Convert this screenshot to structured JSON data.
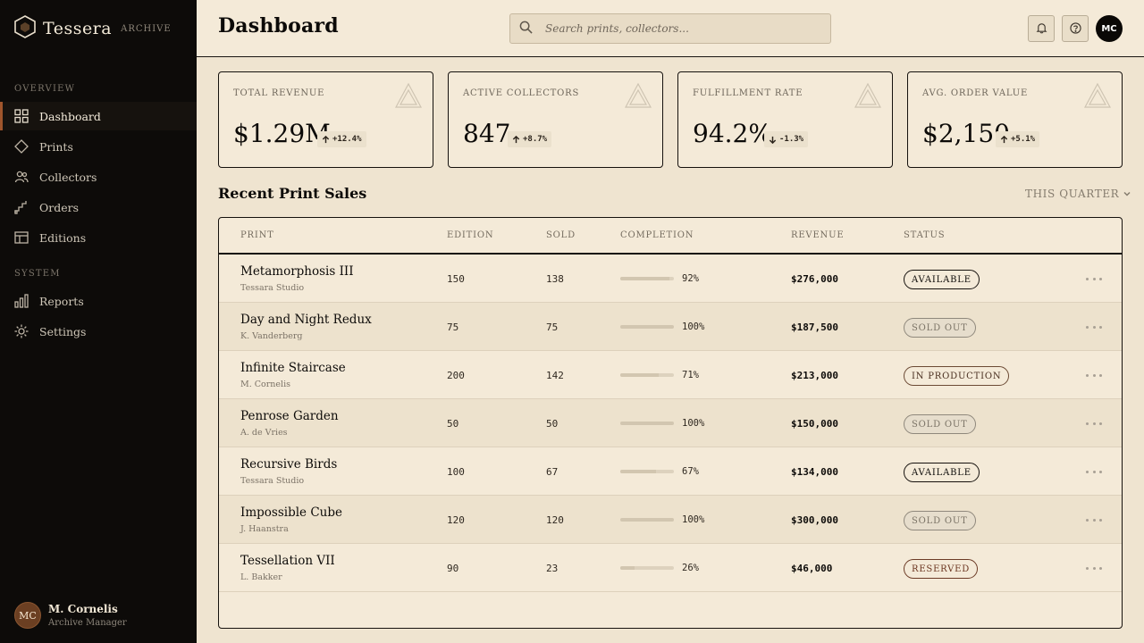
{
  "brand": {
    "name": "Tessera",
    "tag": "ARCHIVE"
  },
  "sidebar": {
    "sections": [
      {
        "label": "OVERVIEW"
      },
      {
        "label": "SYSTEM"
      }
    ],
    "items": [
      {
        "label": "Dashboard",
        "icon": "grid-icon",
        "active": true
      },
      {
        "label": "Prints",
        "icon": "diamond-icon"
      },
      {
        "label": "Collectors",
        "icon": "users-icon"
      },
      {
        "label": "Orders",
        "icon": "steps-icon"
      },
      {
        "label": "Editions",
        "icon": "layout-icon"
      },
      {
        "label": "Reports",
        "icon": "bar-chart-icon"
      },
      {
        "label": "Settings",
        "icon": "sun-gear-icon"
      }
    ],
    "user": {
      "initials": "MC",
      "name": "M. Cornelis",
      "role": "Archive Manager"
    }
  },
  "header": {
    "title": "Dashboard",
    "search_placeholder": "Search prints, collectors...",
    "avatar_initials": "MC"
  },
  "kpis": [
    {
      "label": "TOTAL REVENUE",
      "value": "$1.29M",
      "delta": "+12.4%",
      "direction": "up"
    },
    {
      "label": "ACTIVE COLLECTORS",
      "value": "847",
      "delta": "+8.7%",
      "direction": "up"
    },
    {
      "label": "FULFILLMENT RATE",
      "value": "94.2%",
      "delta": "-1.3%",
      "direction": "down"
    },
    {
      "label": "AVG. ORDER VALUE",
      "value": "$2,150",
      "delta": "+5.1%",
      "direction": "up"
    }
  ],
  "sales": {
    "title": "Recent Print Sales",
    "period": "THIS QUARTER",
    "columns": [
      "PRINT",
      "EDITION",
      "SOLD",
      "COMPLETION",
      "REVENUE",
      "STATUS"
    ],
    "rows": [
      {
        "print": "Metamorphosis III",
        "artist": "Tessara Studio",
        "edition": "150",
        "sold": "138",
        "completion": "92%",
        "completion_value": 92,
        "revenue": "$276,000",
        "status": "AVAILABLE",
        "status_kind": "available"
      },
      {
        "print": "Day and Night Redux",
        "artist": "K. Vanderberg",
        "edition": "75",
        "sold": "75",
        "completion": "100%",
        "completion_value": 100,
        "revenue": "$187,500",
        "status": "SOLD OUT",
        "status_kind": "soldout"
      },
      {
        "print": "Infinite Staircase",
        "artist": "M. Cornelis",
        "edition": "200",
        "sold": "142",
        "completion": "71%",
        "completion_value": 71,
        "revenue": "$213,000",
        "status": "IN PRODUCTION",
        "status_kind": "production"
      },
      {
        "print": "Penrose Garden",
        "artist": "A. de Vries",
        "edition": "50",
        "sold": "50",
        "completion": "100%",
        "completion_value": 100,
        "revenue": "$150,000",
        "status": "SOLD OUT",
        "status_kind": "soldout"
      },
      {
        "print": "Recursive Birds",
        "artist": "Tessara Studio",
        "edition": "100",
        "sold": "67",
        "completion": "67%",
        "completion_value": 67,
        "revenue": "$134,000",
        "status": "AVAILABLE",
        "status_kind": "available"
      },
      {
        "print": "Impossible Cube",
        "artist": "J. Haanstra",
        "edition": "120",
        "sold": "120",
        "completion": "100%",
        "completion_value": 100,
        "revenue": "$300,000",
        "status": "SOLD OUT",
        "status_kind": "soldout"
      },
      {
        "print": "Tessellation VII",
        "artist": "L. Bakker",
        "edition": "90",
        "sold": "23",
        "completion": "26%",
        "completion_value": 26,
        "revenue": "$46,000",
        "status": "RESERVED",
        "status_kind": "reserved"
      }
    ]
  },
  "colors": {
    "sidebar_bg": "#0d0b09",
    "page_bg": "#efe4d0",
    "accent": "#a0552c"
  }
}
